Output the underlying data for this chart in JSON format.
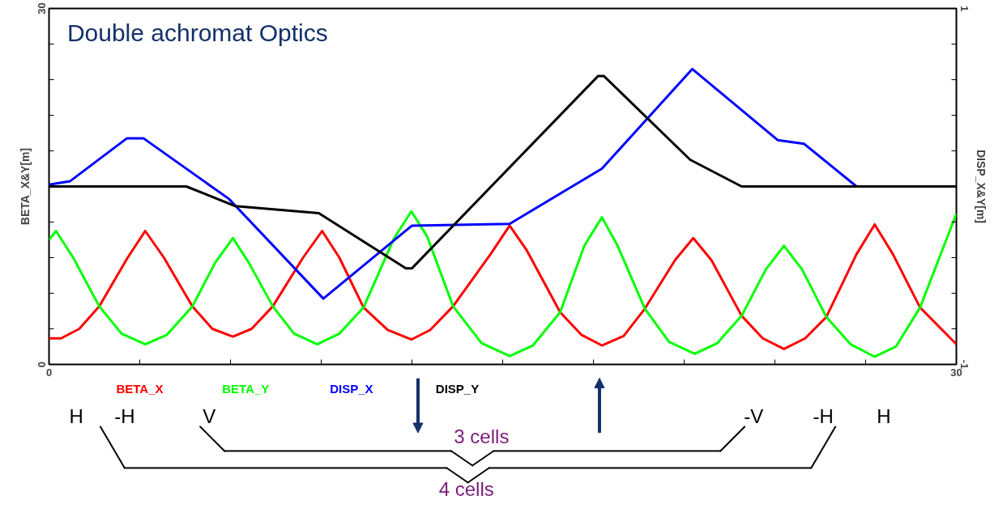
{
  "chart_data": {
    "type": "line",
    "title": "Double achromat Optics",
    "ylabel": "BETA_X&Y[m]",
    "y2label": "DISP_X&Y[m]",
    "xlim": [
      0,
      30
    ],
    "xticks": [
      0,
      {
        "value": 3,
        "label": null
      },
      {
        "value": 6,
        "label": null
      },
      {
        "value": 9,
        "label": null
      },
      {
        "value": 12,
        "label": null
      },
      {
        "value": 15,
        "label": null
      },
      {
        "value": 18,
        "label": null
      },
      {
        "value": 21,
        "label": null
      },
      {
        "value": 24,
        "label": null
      },
      {
        "value": 27,
        "label": null
      },
      30
    ],
    "ylim": [
      0,
      30
    ],
    "yticks": [
      0,
      {
        "value": 3,
        "label": null
      },
      {
        "value": 6,
        "label": null
      },
      {
        "value": 9,
        "label": null
      },
      {
        "value": 12,
        "label": null
      },
      {
        "value": 15,
        "label": null
      },
      {
        "value": 18,
        "label": null
      },
      {
        "value": 21,
        "label": null
      },
      {
        "value": 24,
        "label": null
      },
      {
        "value": 27,
        "label": null
      },
      30
    ],
    "y2lim": [
      -1,
      1
    ],
    "y2ticks": [
      -1,
      {
        "value": -0.8,
        "label": null
      },
      {
        "value": -0.6,
        "label": null
      },
      {
        "value": -0.4,
        "label": null
      },
      {
        "value": -0.2,
        "label": null
      },
      {
        "value": 0,
        "label": null
      },
      {
        "value": 0.2,
        "label": null
      },
      {
        "value": 0.4,
        "label": null
      },
      {
        "value": 0.6,
        "label": null
      },
      {
        "value": 0.8,
        "label": null
      },
      1
    ],
    "grid": false,
    "series": [
      {
        "name": "BETA_X",
        "color": "#ff0000",
        "x": [
          0,
          0.4,
          1.0,
          1.66,
          2.6,
          3.18,
          3.8,
          4.74,
          5.4,
          6.08,
          6.7,
          7.4,
          8.4,
          9.03,
          9.6,
          10.4,
          11.2,
          11.98,
          12.6,
          13.36,
          14.6,
          15.23,
          15.8,
          16.9,
          17.6,
          18.28,
          19.0,
          19.7,
          20.7,
          21.3,
          21.9,
          22.9,
          23.6,
          24.3,
          25.0,
          25.7,
          26.7,
          27.3,
          27.9,
          28.8,
          30
        ],
        "values": [
          2.2,
          2.2,
          3.0,
          4.9,
          9.0,
          11.25,
          9.0,
          4.9,
          3.0,
          2.35,
          3.0,
          4.9,
          9.0,
          11.25,
          9.0,
          4.8,
          2.9,
          2.1,
          2.9,
          4.9,
          9.3,
          11.7,
          9.6,
          4.4,
          2.5,
          1.6,
          2.4,
          4.7,
          8.8,
          10.65,
          8.8,
          4.1,
          2.2,
          1.3,
          2.2,
          4.0,
          9.3,
          11.8,
          9.3,
          4.8,
          1.7
        ]
      },
      {
        "name": "BETA_Y",
        "color": "#00ff00",
        "x": [
          0,
          0.23,
          0.8,
          1.66,
          2.4,
          3.18,
          3.9,
          4.74,
          5.5,
          6.08,
          6.6,
          7.4,
          8.1,
          8.87,
          9.6,
          10.4,
          11.4,
          11.98,
          12.5,
          13.36,
          14.3,
          15.23,
          16.0,
          16.9,
          17.7,
          18.28,
          18.8,
          19.7,
          20.5,
          21.35,
          22.1,
          22.9,
          23.7,
          24.3,
          24.9,
          25.7,
          26.5,
          27.3,
          28.0,
          28.8,
          30
        ],
        "values": [
          10.5,
          11.25,
          9.0,
          4.9,
          2.6,
          1.7,
          2.5,
          4.9,
          8.6,
          10.65,
          8.6,
          4.9,
          2.6,
          1.7,
          2.6,
          4.8,
          10.6,
          12.9,
          10.8,
          4.9,
          1.8,
          0.7,
          1.6,
          4.4,
          10.0,
          12.4,
          10.0,
          4.7,
          1.9,
          0.9,
          1.8,
          4.1,
          8.0,
          10.0,
          8.0,
          4.0,
          1.7,
          0.65,
          1.5,
          4.8,
          12.7
        ]
      },
      {
        "name": "DISP_X",
        "color": "#0000ff",
        "axis": "y2",
        "x": [
          0,
          0.7,
          2.57,
          3.13,
          5.95,
          9.07,
          12.0,
          15.23,
          18.28,
          21.27,
          24.1,
          24.96,
          26.7,
          30
        ],
        "values": [
          0.01,
          0.03,
          0.27,
          0.27,
          -0.07,
          -0.63,
          -0.22,
          -0.21,
          0.1,
          0.66,
          0.26,
          0.24,
          0.0,
          0.0
        ]
      },
      {
        "name": "DISP_Y",
        "color": "#000000",
        "axis": "y2",
        "x": [
          0,
          4.54,
          6.15,
          8.92,
          11.8,
          12.0,
          18.15,
          18.35,
          21.2,
          22.9,
          30
        ],
        "values": [
          0.0,
          0.0,
          -0.11,
          -0.15,
          -0.46,
          -0.46,
          0.62,
          0.62,
          0.15,
          0.0,
          0.0
        ]
      }
    ],
    "annotations": [
      "H",
      "-H",
      "V",
      "-V",
      "-H",
      "H",
      "3 cells",
      "4 cells"
    ]
  }
}
